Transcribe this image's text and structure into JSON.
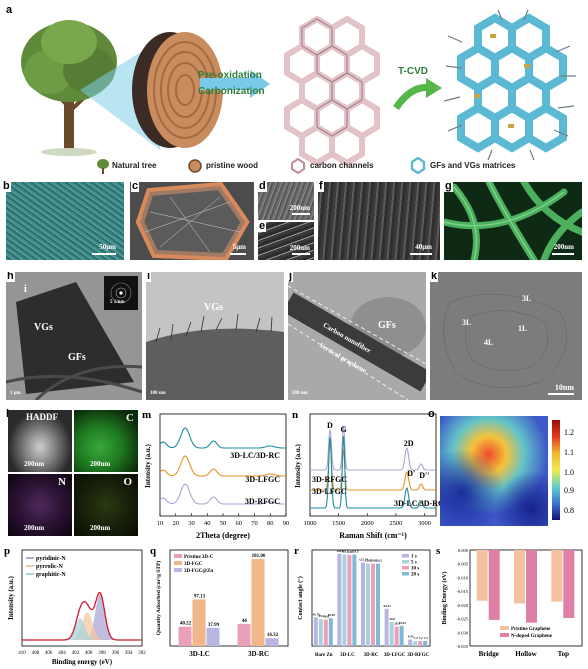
{
  "panel_a": {
    "label": "a",
    "process_1": "Pre-oxidation",
    "process_2": "Carbonization",
    "process_3": "T-CVD",
    "legend": [
      "Natural tree",
      "pristine wood",
      "carbon channels",
      "GFs and VGs matrices"
    ]
  },
  "panels": {
    "b": {
      "label": "b",
      "scale": "50μm"
    },
    "c": {
      "label": "c",
      "scale": "5μm"
    },
    "d": {
      "label": "d",
      "scale": "200nm"
    },
    "e": {
      "label": "e",
      "scale": "200nm"
    },
    "f": {
      "label": "f",
      "scale": "40μm"
    },
    "g": {
      "label": "g",
      "scale": "200nm"
    },
    "h": {
      "label": "h",
      "sub": "i",
      "ann_1": "VGs",
      "ann_2": "GFs",
      "inset": "5 1/nm",
      "scale": "1 μm"
    },
    "i": {
      "label": "i",
      "ann_1": "VGs",
      "scale": "100 nm"
    },
    "j": {
      "label": "j",
      "ann_1": "GFs",
      "ann_2": "Carbon nanofiber",
      "ann_3": "Vertical graphene",
      "scale": "200 nm"
    },
    "k": {
      "label": "k",
      "layers": [
        "3L",
        "3L",
        "1L",
        "4L"
      ],
      "scale": "10nm"
    },
    "l": {
      "label": "l",
      "maps": [
        "HADDF",
        "C",
        "N",
        "O"
      ],
      "scale": "200nm"
    },
    "o": {
      "label": "o",
      "ticks": [
        "1.2",
        "1.1",
        "1.0",
        "0.9",
        "0.8"
      ]
    }
  },
  "chart_data": [
    {
      "panel": "m",
      "type": "line",
      "xlabel": "2Theta (degree)",
      "ylabel": "Intensity (a.u.)",
      "xlim": [
        10,
        90
      ],
      "xticks": [
        10,
        20,
        30,
        40,
        50,
        60,
        70,
        80,
        90
      ],
      "series": [
        {
          "name": "3D-LC/3D-RC",
          "color": "#1f8ca3",
          "offset": 2.0
        },
        {
          "name": "3D-LFGC",
          "color": "#e8902a",
          "offset": 1.0
        },
        {
          "name": "3D-RFGC",
          "color": "#a9a7d6",
          "offset": 0.0
        }
      ]
    },
    {
      "panel": "n",
      "type": "line",
      "xlabel": "Raman Shift (cm⁻¹)",
      "ylabel": "Intensity (a.u.)",
      "xlim": [
        1000,
        3200
      ],
      "xticks": [
        1000,
        1500,
        2000,
        2500,
        3000
      ],
      "peaks": [
        "D",
        "G",
        "2D",
        "D'",
        "D''"
      ],
      "series": [
        {
          "name": "3D-RFGC",
          "color": "#a9a7d6"
        },
        {
          "name": "3D-LFGC",
          "color": "#e8902a"
        },
        {
          "name": "3D-LC/3D-RC",
          "color": "#1f8ca3"
        }
      ]
    },
    {
      "panel": "p",
      "type": "line",
      "xlabel": "Binding energy (eV)",
      "ylabel": "Intensity (a.u.)",
      "xlim": [
        410,
        392
      ],
      "xticks": [
        410,
        408,
        406,
        404,
        402,
        400,
        398,
        396,
        394,
        392
      ],
      "series": [
        {
          "name": "pyridinic-N",
          "color": "#a9a7d6"
        },
        {
          "name": "pyrrolic-N",
          "color": "#f2c8a2"
        },
        {
          "name": "graphitic-N",
          "color": "#a8d3dd"
        }
      ]
    },
    {
      "panel": "q",
      "type": "bar",
      "ylabel": "Quantity Adsorbed (cm³/g STP)",
      "categories": [
        "3D-LC",
        "3D-RC"
      ],
      "ylim": [
        0,
        200
      ],
      "series": [
        {
          "name": "Pristine 3D-C",
          "color": "#e9a0b8",
          "values": [
            40.22,
            46
          ]
        },
        {
          "name": "3D-FGC",
          "color": "#f2b68a",
          "values": [
            97.13,
            181.06
          ]
        },
        {
          "name": "3D-FGC@Zn",
          "color": "#b7b6e0",
          "values": [
            37.99,
            16.32
          ]
        }
      ]
    },
    {
      "panel": "r",
      "type": "bar",
      "ylabel": "Contact angle (°)",
      "categories": [
        "Bare Zn",
        "3D-LC",
        "3D-RC",
        "3D-LFGC",
        "3D-RFGC"
      ],
      "ylim": [
        0,
        140
      ],
      "series": [
        {
          "name": "1 s",
          "color": "#b7b6e0",
          "values": [
            41.76,
            134.5,
            121.74,
            54.23,
            9.55
          ]
        },
        {
          "name": "5 s",
          "color": "#a8d3dd",
          "values": [
            39.2,
            133.5,
            120.5,
            34.8,
            7.2
          ]
        },
        {
          "name": "10 s",
          "color": "#e9a0b8",
          "values": [
            38.6,
            133.0,
            120.1,
            28.3,
            7.2
          ]
        },
        {
          "name": "20 s",
          "color": "#7fb9d6",
          "values": [
            40.55,
            133.5,
            120.2,
            29.43,
            7.2
          ]
        }
      ]
    },
    {
      "panel": "s",
      "type": "bar",
      "ylabel": "Binding Energy (eV)",
      "categories": [
        "Bridge",
        "Hollow",
        "Top"
      ],
      "ylim": [
        -0.035,
        0.0
      ],
      "series": [
        {
          "name": "Pristine Graphene",
          "color": "#f2c2a0",
          "values": [
            -0.0185,
            -0.0195,
            -0.0188
          ]
        },
        {
          "name": "N-doped Graphene",
          "color": "#e07fa5",
          "values": [
            -0.0255,
            -0.0265,
            -0.0248
          ]
        }
      ]
    }
  ]
}
